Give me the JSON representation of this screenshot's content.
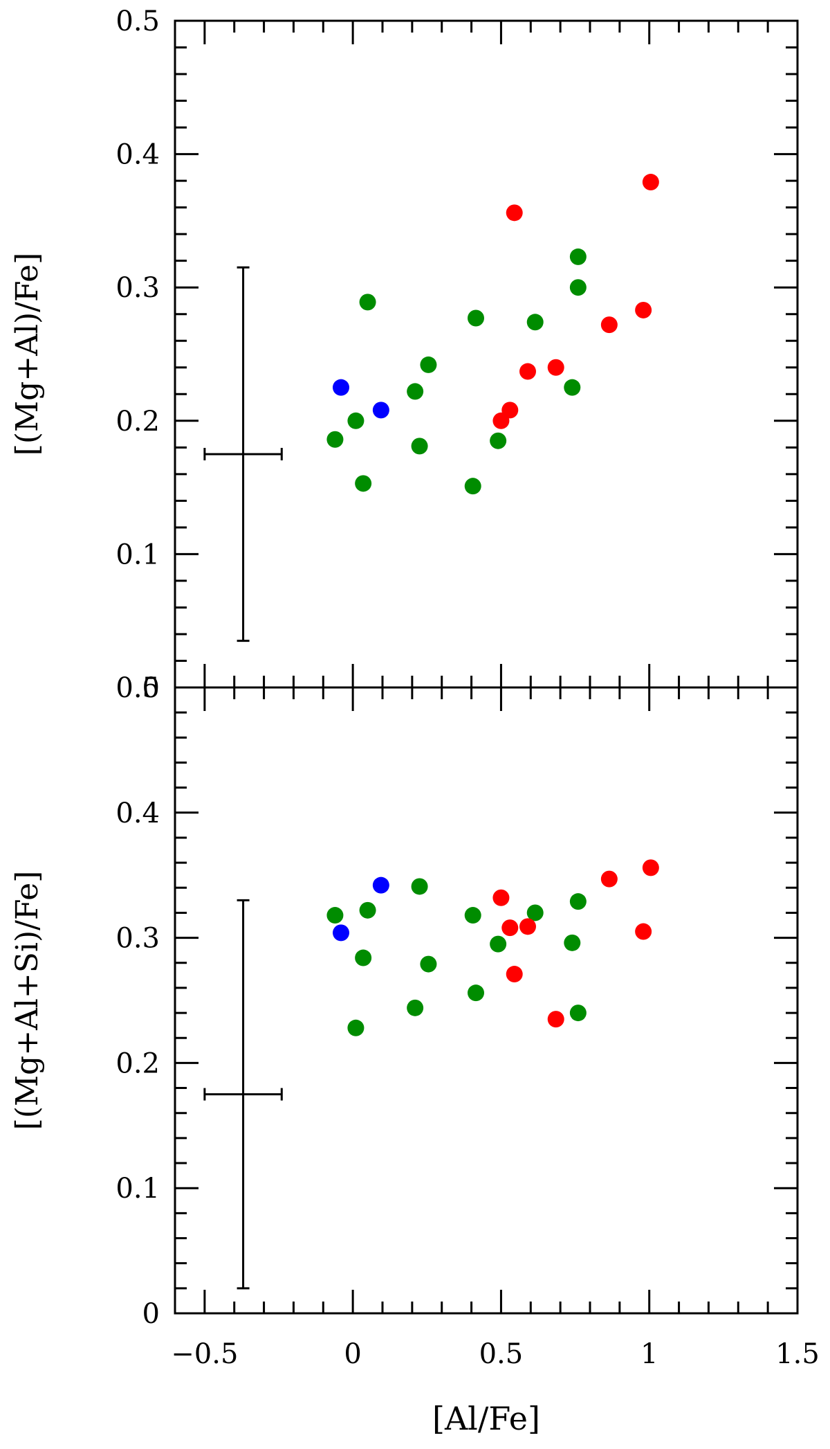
{
  "chart_data": [
    {
      "type": "scatter",
      "panel": "top",
      "title": "",
      "xlabel": "",
      "ylabel": "[(Mg+Al)/Fe]",
      "xlim": [
        -0.6,
        1.5
      ],
      "ylim": [
        0,
        0.5
      ],
      "x_ticks": [
        "−0.5",
        "0",
        "0.5",
        "1",
        "1.5"
      ],
      "x_tick_values": [
        -0.5,
        0,
        0.5,
        1,
        1.5
      ],
      "y_ticks": [
        "0",
        "0.1",
        "0.2",
        "0.3",
        "0.4",
        "0.5"
      ],
      "y_tick_values": [
        0,
        0.1,
        0.2,
        0.3,
        0.4,
        0.5
      ],
      "error_bar": {
        "x": -0.37,
        "y": 0.175,
        "x_err": 0.13,
        "y_low": 0.035,
        "y_high": 0.315
      },
      "series": [
        {
          "color": "#0000ff",
          "points": [
            [
              -0.04,
              0.225
            ],
            [
              0.095,
              0.208
            ]
          ]
        },
        {
          "color": "#008c00",
          "points": [
            [
              -0.06,
              0.186
            ],
            [
              0.01,
              0.2
            ],
            [
              0.035,
              0.153
            ],
            [
              0.05,
              0.289
            ],
            [
              0.21,
              0.222
            ],
            [
              0.225,
              0.181
            ],
            [
              0.255,
              0.242
            ],
            [
              0.405,
              0.151
            ],
            [
              0.415,
              0.277
            ],
            [
              0.49,
              0.185
            ],
            [
              0.615,
              0.274
            ],
            [
              0.74,
              0.225
            ],
            [
              0.76,
              0.3
            ],
            [
              0.76,
              0.323
            ]
          ]
        },
        {
          "color": "#ff0000",
          "points": [
            [
              0.5,
              0.2
            ],
            [
              0.53,
              0.208
            ],
            [
              0.545,
              0.356
            ],
            [
              0.59,
              0.237
            ],
            [
              0.685,
              0.24
            ],
            [
              0.865,
              0.272
            ],
            [
              0.98,
              0.283
            ],
            [
              1.005,
              0.379
            ]
          ]
        }
      ]
    },
    {
      "type": "scatter",
      "panel": "bottom",
      "title": "",
      "xlabel": "[Al/Fe]",
      "ylabel": "[(Mg+Al+Si)/Fe]",
      "xlim": [
        -0.6,
        1.5
      ],
      "ylim": [
        0,
        0.5
      ],
      "x_ticks": [
        "−0.5",
        "0",
        "0.5",
        "1",
        "1.5"
      ],
      "x_tick_values": [
        -0.5,
        0,
        0.5,
        1,
        1.5
      ],
      "y_ticks": [
        "0",
        "0.1",
        "0.2",
        "0.3",
        "0.4",
        "0.5"
      ],
      "y_tick_values": [
        0,
        0.1,
        0.2,
        0.3,
        0.4,
        0.5
      ],
      "error_bar": {
        "x": -0.37,
        "y": 0.175,
        "x_err": 0.13,
        "y_low": 0.02,
        "y_high": 0.33
      },
      "series": [
        {
          "color": "#0000ff",
          "points": [
            [
              -0.04,
              0.304
            ],
            [
              0.095,
              0.342
            ]
          ]
        },
        {
          "color": "#008c00",
          "points": [
            [
              -0.06,
              0.318
            ],
            [
              0.01,
              0.228
            ],
            [
              0.035,
              0.284
            ],
            [
              0.05,
              0.322
            ],
            [
              0.21,
              0.244
            ],
            [
              0.225,
              0.341
            ],
            [
              0.255,
              0.279
            ],
            [
              0.405,
              0.318
            ],
            [
              0.415,
              0.256
            ],
            [
              0.49,
              0.295
            ],
            [
              0.615,
              0.32
            ],
            [
              0.74,
              0.296
            ],
            [
              0.76,
              0.329
            ],
            [
              0.76,
              0.24
            ]
          ]
        },
        {
          "color": "#ff0000",
          "points": [
            [
              0.5,
              0.332
            ],
            [
              0.53,
              0.308
            ],
            [
              0.545,
              0.271
            ],
            [
              0.59,
              0.309
            ],
            [
              0.685,
              0.235
            ],
            [
              0.865,
              0.347
            ],
            [
              0.98,
              0.305
            ],
            [
              1.005,
              0.356
            ]
          ]
        }
      ]
    }
  ]
}
